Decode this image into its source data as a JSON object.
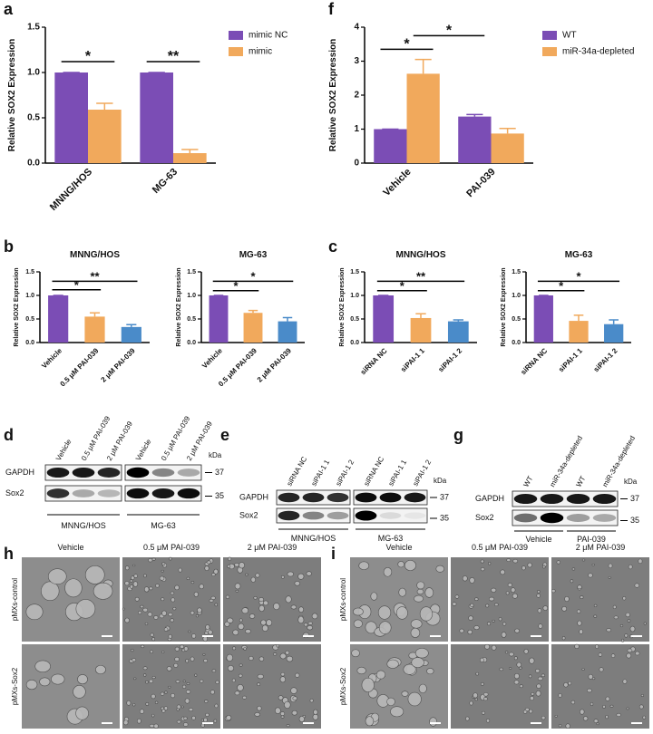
{
  "chart_data": [
    {
      "panel": "a",
      "type": "bar",
      "ylabel": "Relative SOX2 Expression",
      "categories": [
        "MNNG/HOS",
        "MG-63"
      ],
      "series": [
        {
          "name": "mimic NC",
          "color": "#7b4db5",
          "values": [
            1.0,
            1.0
          ],
          "errors": [
            0,
            0
          ]
        },
        {
          "name": "mimic",
          "color": "#f1a95c",
          "values": [
            0.59,
            0.11
          ],
          "errors": [
            0.07,
            0.04
          ]
        }
      ],
      "ylim": [
        0,
        1.5
      ],
      "yticks": [
        {
          "value": 0,
          "label": "0.0"
        },
        0.5,
        {
          "value": 1,
          "label": "1.0"
        },
        1.5
      ],
      "legend": "right",
      "annotations": [
        {
          "text": "*",
          "y": 1.12,
          "from": "MNNG/HOS",
          "to": "MNNG/HOS"
        },
        {
          "text": "**",
          "y": 1.12,
          "from": "MG-63",
          "to": "MG-63"
        }
      ]
    },
    {
      "panel": "f",
      "type": "bar",
      "ylabel": "Relative SOX2 Expression",
      "categories": [
        "Vehicle",
        "PAI-039"
      ],
      "series": [
        {
          "name": "WT",
          "color": "#7b4db5",
          "values": [
            1.0,
            1.37
          ],
          "errors": [
            0,
            0.06
          ]
        },
        {
          "name": "miR-34a-depleted",
          "color": "#f1a95c",
          "values": [
            2.63,
            0.87
          ],
          "errors": [
            0.42,
            0.15
          ]
        }
      ],
      "ylim": [
        0,
        4
      ],
      "yticks": [
        0,
        1,
        2,
        3,
        4
      ],
      "legend": "right",
      "annotations": [
        {
          "text": "*",
          "y": 3.35,
          "from": "Vehicle",
          "to": "Vehicle"
        },
        {
          "text": "*",
          "y": 3.75,
          "from": "Vehicle",
          "to": "PAI-039"
        }
      ]
    },
    {
      "panel": "b",
      "type": "bar",
      "title": "MNNG/HOS",
      "ylabel": "Relative SOX2 Expression",
      "categories": [
        "Vehicle",
        "0.5 μM PAI-039",
        "2 μM PAI-039"
      ],
      "values": [
        1.0,
        0.55,
        0.33
      ],
      "errors": [
        0,
        0.08,
        0.05
      ],
      "colors": [
        "#7b4db5",
        "#f1a95c",
        "#4a8bc9"
      ],
      "ylim": [
        0,
        1.5
      ],
      "yticks": [
        {
          "value": 0,
          "label": "0.0"
        },
        0.5,
        {
          "value": 1,
          "label": "1.0"
        },
        1.5
      ],
      "annotations": [
        {
          "text": "*",
          "y": 1.12,
          "from": "Vehicle",
          "to": "0.5 μM PAI-039"
        },
        {
          "text": "**",
          "y": 1.3,
          "from": "Vehicle",
          "to": "2 μM PAI-039"
        }
      ]
    },
    {
      "type": "bar",
      "title": "MG-63",
      "ylabel": "Relative SOX2 Expression",
      "categories": [
        "Vehicle",
        "0.5 μM PAI-039",
        "2 μM PAI-039"
      ],
      "values": [
        1.0,
        0.63,
        0.45
      ],
      "errors": [
        0,
        0.05,
        0.08
      ],
      "colors": [
        "#7b4db5",
        "#f1a95c",
        "#4a8bc9"
      ],
      "ylim": [
        0,
        1.5
      ],
      "yticks": [
        {
          "value": 0,
          "label": "0.0"
        },
        0.5,
        {
          "value": 1,
          "label": "1.0"
        },
        1.5
      ],
      "annotations": [
        {
          "text": "*",
          "y": 1.1,
          "from": "Vehicle",
          "to": "0.5 μM PAI-039"
        },
        {
          "text": "*",
          "y": 1.3,
          "from": "Vehicle",
          "to": "2 μM PAI-039"
        }
      ]
    },
    {
      "panel": "c",
      "type": "bar",
      "title": "MNNG/HOS",
      "ylabel": "Relative SOX2 Expression",
      "categories": [
        "siRNA NC",
        "siPAI-1 1",
        "siPAI-1 2"
      ],
      "values": [
        1.0,
        0.52,
        0.45
      ],
      "errors": [
        0,
        0.09,
        0.03
      ],
      "colors": [
        "#7b4db5",
        "#f1a95c",
        "#4a8bc9"
      ],
      "ylim": [
        0,
        1.5
      ],
      "yticks": [
        {
          "value": 0,
          "label": "0.0"
        },
        0.5,
        {
          "value": 1,
          "label": "1.0"
        },
        1.5
      ],
      "annotations": [
        {
          "text": "*",
          "y": 1.1,
          "from": "siRNA NC",
          "to": "siPAI-1 1"
        },
        {
          "text": "**",
          "y": 1.3,
          "from": "siRNA NC",
          "to": "siPAI-1 2"
        }
      ]
    },
    {
      "type": "bar",
      "title": "MG-63",
      "ylabel": "Relative SOX2 Expression",
      "categories": [
        "siRNA NC",
        "siPAI-1 1",
        "siPAI-1 2"
      ],
      "values": [
        1.0,
        0.46,
        0.39
      ],
      "errors": [
        0,
        0.12,
        0.09
      ],
      "colors": [
        "#7b4db5",
        "#f1a95c",
        "#4a8bc9"
      ],
      "ylim": [
        0,
        1.5
      ],
      "yticks": [
        {
          "value": 0,
          "label": "0.0"
        },
        0.5,
        {
          "value": 1,
          "label": "1.0"
        },
        1.5
      ],
      "annotations": [
        {
          "text": "*",
          "y": 1.1,
          "from": "siRNA NC",
          "to": "siPAI-1 1"
        },
        {
          "text": "*",
          "y": 1.3,
          "from": "siRNA NC",
          "to": "siPAI-1 2"
        }
      ]
    }
  ],
  "blots": [
    {
      "panel": "d",
      "lanes": [
        "Vehicle",
        "0.5 μM PAI-039",
        "2 μM PAI-039",
        "Vehicle",
        "0.5 μM PAI-039",
        "2 μM PAI-039"
      ],
      "rows": [
        "GAPDH",
        "Sox2"
      ],
      "markers": [
        "37",
        "35"
      ],
      "unit": "kDa",
      "groups": [
        "MNNG/HOS",
        "MG-63"
      ]
    },
    {
      "panel": "e",
      "lanes": [
        "siRNA NC",
        "siPAI-1 1",
        "siPAI-1 2",
        "siRNA NC",
        "siPAI-1 1",
        "siPAI-1 2"
      ],
      "rows": [
        "GAPDH",
        "Sox2"
      ],
      "markers": [
        "37",
        "35"
      ],
      "unit": "kDa",
      "groups": [
        "MNNG/HOS",
        "MG-63"
      ]
    },
    {
      "panel": "g",
      "lanes": [
        "WT",
        "miR-34a-depleted",
        "WT",
        "miR-34a-depleted"
      ],
      "rows": [
        "GAPDH",
        "Sox2"
      ],
      "markers": [
        "37",
        "35"
      ],
      "unit": "kDa",
      "groups": [
        "Vehicle",
        "PAI-039"
      ]
    }
  ],
  "micrographs": [
    {
      "panel": "h",
      "columns": [
        "Vehicle",
        "0.5 μM PAI-039",
        "2 μM PAI-039"
      ],
      "rows": [
        "pMXs-control",
        "pMXs-Sox2"
      ]
    },
    {
      "panel": "i",
      "columns": [
        "Vehicle",
        "0.5 μM PAI-039",
        "2 μM PAI-039"
      ],
      "rows": [
        "pMXs-control",
        "pMXs-Sox2"
      ]
    }
  ]
}
